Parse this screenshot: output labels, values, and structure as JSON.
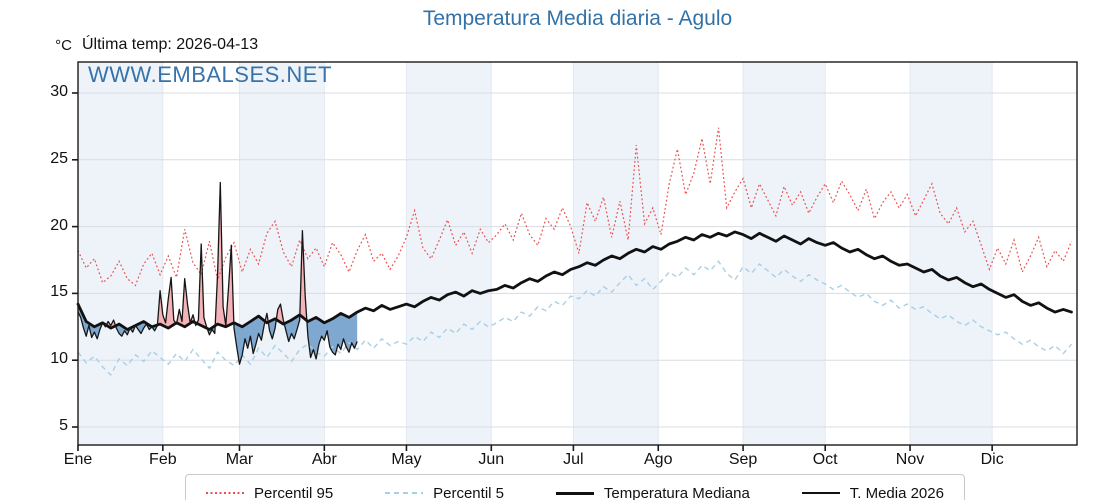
{
  "title": "Temperatura Media diaria - Agulo",
  "unit_label": "°C",
  "last_temp_label": "Última temp: 2026-04-13",
  "watermark": "WWW.EMBALSES.NET",
  "colors": {
    "title": "#3372a7",
    "watermark": "#2e6da5",
    "p95": "#e85050",
    "p5": "#a9cfe5",
    "median": "#111111",
    "t2026": "#161616",
    "fill_above": "#f3b3b8",
    "fill_below": "#7fa8d0",
    "band": "#edf3f9",
    "grid_h": "#d8dde3",
    "grid_v": "#e3e9f1",
    "axis": "#1a1a1a",
    "legend_border": "#c9c9c9"
  },
  "legend": {
    "items": [
      {
        "label": "Percentil 95",
        "style": "dotted-red"
      },
      {
        "label": "Percentil 5",
        "style": "dashed-blue"
      },
      {
        "label": "Temperatura Mediana",
        "style": "thick-black"
      },
      {
        "label": "T. Media 2026",
        "style": "thin-black"
      }
    ]
  },
  "chart_data": {
    "type": "line",
    "title": "Temperatura Media diaria - Agulo",
    "xlabel": "",
    "ylabel": "°C",
    "ylim": [
      3.6,
      32.4
    ],
    "xlim_days": [
      1,
      366
    ],
    "grid": true,
    "legend_position": "bottom",
    "x_tick_labels": [
      "Ene",
      "Feb",
      "Mar",
      "Abr",
      "May",
      "Jun",
      "Jul",
      "Ago",
      "Sep",
      "Oct",
      "Nov",
      "Dic"
    ],
    "month_start_days": [
      1,
      32,
      60,
      91,
      121,
      152,
      182,
      213,
      244,
      274,
      305,
      335
    ],
    "y_ticks": [
      5,
      10,
      15,
      20,
      25,
      30
    ],
    "series": [
      {
        "name": "Percentil 95",
        "style": "dotted",
        "color": "#e85050",
        "start_day": 1,
        "step": 3,
        "values": [
          18.2,
          16.9,
          17.6,
          15.8,
          16.3,
          17.4,
          16.1,
          15.6,
          17.2,
          18.0,
          16.4,
          17.8,
          16.2,
          19.8,
          17.3,
          16.4,
          18.9,
          16.0,
          17.7,
          18.8,
          16.6,
          18.3,
          17.2,
          19.5,
          20.4,
          18.1,
          17.0,
          19.0,
          17.6,
          18.4,
          17.0,
          18.8,
          17.9,
          16.6,
          18.2,
          19.4,
          17.4,
          18.0,
          16.8,
          17.8,
          19.2,
          21.2,
          18.4,
          17.6,
          19.0,
          20.5,
          18.6,
          19.6,
          18.0,
          19.8,
          18.8,
          19.4,
          20.2,
          19.0,
          21.0,
          19.4,
          18.6,
          20.6,
          19.8,
          21.4,
          20.0,
          18.0,
          21.8,
          20.4,
          22.2,
          19.2,
          21.9,
          19.0,
          26.1,
          20.2,
          21.4,
          19.4,
          23.2,
          25.8,
          22.4,
          24.0,
          26.6,
          23.2,
          27.4,
          21.4,
          22.6,
          23.6,
          21.4,
          23.2,
          22.0,
          20.8,
          23.0,
          21.6,
          22.6,
          21.0,
          22.2,
          23.2,
          21.8,
          23.4,
          22.4,
          21.2,
          22.8,
          20.6,
          21.8,
          22.6,
          21.4,
          22.4,
          20.8,
          22.0,
          23.2,
          21.0,
          20.2,
          21.4,
          19.6,
          20.4,
          18.6,
          16.8,
          18.4,
          17.2,
          19.0,
          16.6,
          17.8,
          19.2,
          17.0,
          18.2,
          17.4,
          18.9
        ]
      },
      {
        "name": "Percentil 5",
        "style": "dashed",
        "color": "#a9cfe5",
        "start_day": 1,
        "step": 3,
        "values": [
          10.6,
          9.8,
          10.3,
          9.5,
          8.9,
          10.1,
          9.6,
          10.4,
          9.9,
          10.7,
          10.2,
          9.7,
          10.5,
          9.9,
          10.8,
          10.1,
          9.4,
          10.6,
          10.0,
          9.6,
          10.4,
          9.7,
          10.9,
          10.2,
          11.1,
          10.5,
          9.9,
          10.8,
          11.2,
          10.6,
          10.3,
          11.0,
          10.5,
          11.3,
          10.8,
          11.5,
          10.9,
          11.6,
          11.1,
          11.4,
          11.2,
          11.8,
          11.4,
          12.1,
          11.7,
          12.4,
          12.0,
          12.7,
          12.3,
          12.9,
          12.5,
          12.8,
          13.2,
          12.9,
          13.6,
          13.3,
          14.0,
          13.7,
          14.4,
          14.1,
          14.8,
          14.6,
          15.2,
          14.8,
          15.5,
          15.1,
          15.8,
          16.4,
          15.6,
          16.1,
          15.3,
          15.9,
          16.6,
          16.2,
          16.9,
          16.4,
          17.1,
          16.7,
          17.4,
          16.5,
          16.0,
          17.0,
          16.5,
          17.2,
          16.7,
          16.2,
          16.8,
          16.3,
          15.9,
          16.4,
          16.0,
          15.7,
          15.3,
          15.6,
          15.1,
          14.7,
          15.0,
          14.4,
          14.1,
          14.5,
          13.9,
          14.2,
          13.8,
          14.0,
          13.5,
          13.1,
          13.4,
          12.9,
          12.6,
          13.0,
          12.5,
          12.2,
          11.9,
          12.1,
          11.6,
          11.2,
          11.5,
          11.0,
          10.7,
          11.1,
          10.5,
          11.2
        ]
      },
      {
        "name": "Temperatura Mediana",
        "style": "solid-thick",
        "color": "#111111",
        "start_day": 1,
        "step": 3,
        "values": [
          14.2,
          12.9,
          12.5,
          12.8,
          12.4,
          12.7,
          12.3,
          12.6,
          12.9,
          12.5,
          12.7,
          12.4,
          12.8,
          12.5,
          12.9,
          12.6,
          12.3,
          12.7,
          12.5,
          12.8,
          12.5,
          12.9,
          13.3,
          12.8,
          13.1,
          12.7,
          13.0,
          13.4,
          12.9,
          13.2,
          12.8,
          13.1,
          13.5,
          13.2,
          13.6,
          13.9,
          13.7,
          14.1,
          13.8,
          14.0,
          14.2,
          14.0,
          14.4,
          14.7,
          14.5,
          14.9,
          15.1,
          14.8,
          15.2,
          15.0,
          15.2,
          15.3,
          15.6,
          15.4,
          15.8,
          16.1,
          15.9,
          16.3,
          16.6,
          16.4,
          16.8,
          17.0,
          17.3,
          17.1,
          17.5,
          17.8,
          17.6,
          18.0,
          18.3,
          18.1,
          18.5,
          18.3,
          18.7,
          18.9,
          19.2,
          19.0,
          19.4,
          19.2,
          19.5,
          19.3,
          19.6,
          19.4,
          19.1,
          19.5,
          19.2,
          18.9,
          19.3,
          19.0,
          18.7,
          19.1,
          18.8,
          18.6,
          18.8,
          18.4,
          18.1,
          18.3,
          17.9,
          17.6,
          17.8,
          17.4,
          17.1,
          17.2,
          16.9,
          16.6,
          16.8,
          16.3,
          16.0,
          16.2,
          15.8,
          15.5,
          15.7,
          15.3,
          15.0,
          14.7,
          14.9,
          14.4,
          14.1,
          14.3,
          13.9,
          13.6,
          13.8,
          13.6
        ]
      },
      {
        "name": "T. Media 2026",
        "style": "solid-thin",
        "color": "#161616",
        "start_day": 1,
        "step": 1,
        "values": [
          13.6,
          13.2,
          12.4,
          11.8,
          12.6,
          11.7,
          12.1,
          11.6,
          12.3,
          12.8,
          12.5,
          12.9,
          12.6,
          13.0,
          12.4,
          12.0,
          11.8,
          12.2,
          11.9,
          12.4,
          12.1,
          12.6,
          12.3,
          12.0,
          12.4,
          12.7,
          12.3,
          12.5,
          12.2,
          12.6,
          15.2,
          13.4,
          12.8,
          14.6,
          16.2,
          13.0,
          12.7,
          13.8,
          12.9,
          16.1,
          14.2,
          12.8,
          13.4,
          12.6,
          13.0,
          18.7,
          13.2,
          12.5,
          11.9,
          12.3,
          12.0,
          16.5,
          23.3,
          14.0,
          12.6,
          15.4,
          18.6,
          12.4,
          11.0,
          9.7,
          10.4,
          11.6,
          10.9,
          11.8,
          10.5,
          11.2,
          12.0,
          11.5,
          12.6,
          13.5,
          12.2,
          11.6,
          12.4,
          13.8,
          14.2,
          13.0,
          12.2,
          11.4,
          12.0,
          11.6,
          12.3,
          13.0,
          19.7,
          14.8,
          11.8,
          10.2,
          10.8,
          10.1,
          11.2,
          11.8,
          11.5,
          12.2,
          11.0,
          10.6,
          10.4,
          11.2,
          10.8,
          11.6,
          11.0,
          10.6,
          11.3,
          10.9,
          11.4
        ]
      }
    ],
    "fills": {
      "description": "T. Media 2026 vs Mediana: pink where above median, blue where below",
      "above_color": "#f3b3b8",
      "below_color": "#7fa8d0"
    }
  }
}
